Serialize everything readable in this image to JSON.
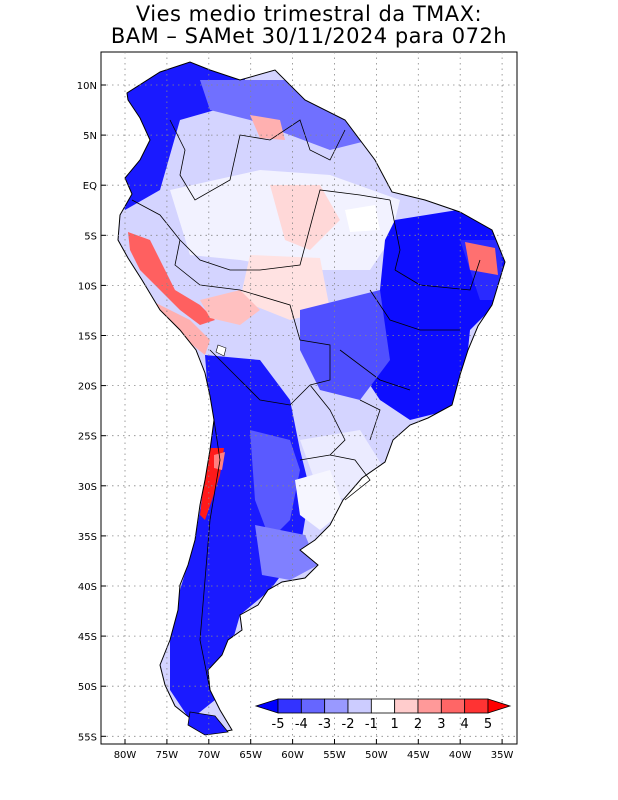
{
  "title": {
    "line1": "Vies medio trimestral da TMAX:",
    "line2": "BAM – SAMet 30/11/2024  para 072h"
  },
  "lon_ticks": [
    "80W",
    "75W",
    "70W",
    "65W",
    "60W",
    "55W",
    "50W",
    "45W",
    "40W",
    "35W"
  ],
  "lat_ticks": [
    "10N",
    "5N",
    "EQ",
    "5S",
    "10S",
    "15S",
    "20S",
    "25S",
    "30S",
    "35S",
    "40S",
    "45S",
    "50S",
    "55S"
  ],
  "colorbar": {
    "labels": [
      "-5",
      "-4",
      "-3",
      "-2",
      "-1",
      "1",
      "2",
      "3",
      "4",
      "5"
    ],
    "colors": [
      "#0000ff",
      "#3333ff",
      "#6666ff",
      "#9999ff",
      "#ccccff",
      "#ffffff",
      "#ffcccc",
      "#ff9999",
      "#ff6666",
      "#ff3333",
      "#ff0000"
    ]
  },
  "palette": {
    "deep_blue": "#1a1aff",
    "mid_blue": "#5a5aff",
    "light_blue": "#b0b0ff",
    "pale_blue": "#dcdcff",
    "white": "#ffffff",
    "pale_red": "#ffd0d0",
    "mid_red": "#ff8080",
    "deep_red": "#ff1a1a"
  }
}
